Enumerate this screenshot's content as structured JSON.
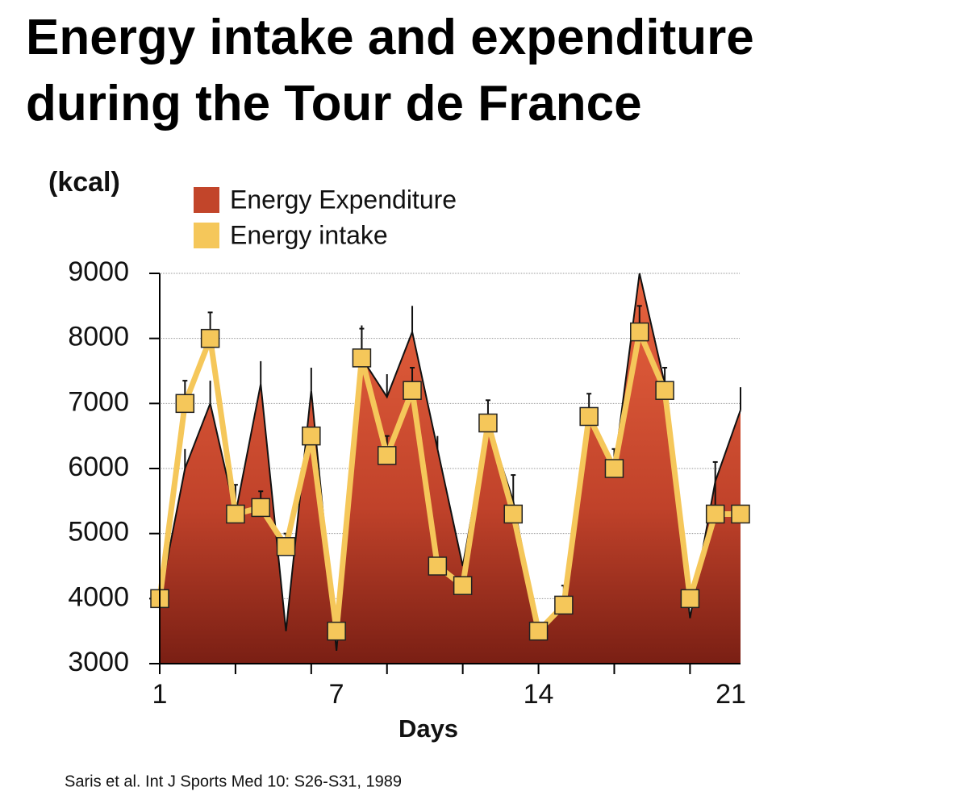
{
  "chart_data": {
    "type": "area_line",
    "title": "Energy intake and expenditure during the Tour de France",
    "y_label": "(kcal)",
    "x_label": "Days",
    "source": "Saris et al. Int J Sports Med 10: S26-S31, 1989",
    "categories": [
      "1",
      null,
      null,
      null,
      null,
      null,
      null,
      "7",
      null,
      null,
      null,
      null,
      null,
      null,
      null,
      "14",
      null,
      null,
      null,
      null,
      null,
      null,
      null,
      "21"
    ],
    "ylim": [
      3000,
      9000
    ],
    "yticks": [
      3000,
      4000,
      5000,
      6000,
      7000,
      8000,
      9000
    ],
    "grid": true,
    "series": [
      {
        "name": "Energy Expenditure",
        "kind": "area",
        "color": "#c2452a",
        "values": [
          4000,
          6000,
          7000,
          5300,
          7300,
          3500,
          7200,
          3200,
          7700,
          7100,
          8100,
          6300,
          4500,
          6700,
          5500,
          3500,
          3900,
          6800,
          6000,
          9000,
          7300,
          3700,
          5800,
          6900
        ],
        "errors": [
          null,
          300,
          350,
          null,
          350,
          null,
          350,
          null,
          500,
          350,
          400,
          200,
          null,
          null,
          null,
          null,
          null,
          null,
          null,
          null,
          null,
          null,
          null,
          350
        ]
      },
      {
        "name": "Energy intake",
        "kind": "line",
        "color": "#f5c75a",
        "values": [
          4000,
          7000,
          8000,
          5300,
          5400,
          4800,
          6500,
          3500,
          7700,
          6200,
          7200,
          4500,
          4200,
          6700,
          5300,
          3500,
          3900,
          6800,
          6000,
          8100,
          7200,
          4000,
          5300,
          5300
        ],
        "errors": [
          null,
          350,
          400,
          450,
          250,
          200,
          null,
          null,
          450,
          300,
          350,
          null,
          null,
          350,
          600,
          null,
          300,
          350,
          300,
          400,
          350,
          null,
          800,
          null
        ]
      }
    ]
  }
}
